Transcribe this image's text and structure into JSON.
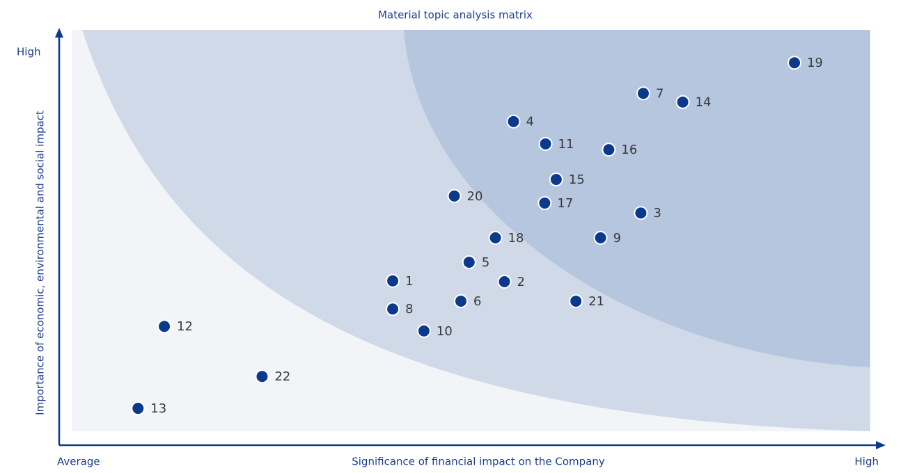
{
  "chart_data": {
    "type": "scatter",
    "title": "Material topic analysis matrix",
    "x_label": "Significance of financial impact on the Company",
    "y_label": "Importance of economic, environmental and social impact",
    "x_low_label": "Average",
    "x_high_label": "High",
    "y_high_label": "High",
    "xlim": [
      0,
      100
    ],
    "ylim": [
      0,
      100
    ],
    "color": "#0b3a8c",
    "labels": [
      19,
      7,
      14,
      4,
      11,
      16,
      15,
      20,
      17,
      3,
      18,
      9,
      5,
      1,
      2,
      6,
      21,
      8,
      10,
      12,
      22,
      13
    ],
    "x": [
      89.5,
      71.1,
      75.9,
      55.3,
      59.2,
      66.9,
      60.5,
      48.1,
      59.1,
      70.8,
      53.1,
      65.9,
      49.9,
      40.6,
      54.2,
      48.9,
      62.9,
      40.6,
      44.4,
      12.8,
      24.7,
      9.6
    ],
    "y": [
      92.4,
      85.0,
      82.9,
      78.2,
      72.8,
      71.4,
      64.2,
      60.2,
      58.5,
      56.1,
      50.1,
      50.1,
      44.2,
      39.7,
      39.5,
      34.8,
      34.8,
      32.9,
      27.6,
      28.7,
      16.6,
      8.9
    ]
  }
}
